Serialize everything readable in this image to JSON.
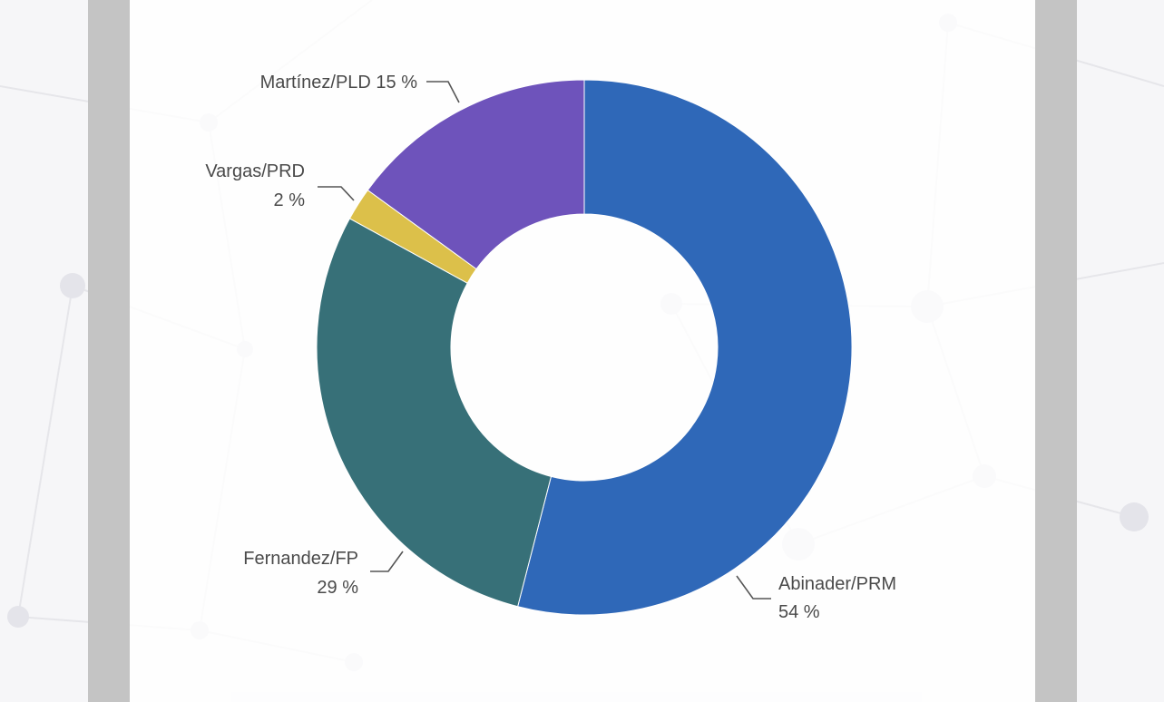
{
  "chart_data": {
    "type": "pie",
    "donut": true,
    "slices": [
      {
        "label": "Abinader/PRM",
        "value": 54,
        "value_text": "54 %",
        "color": "#2f68b8"
      },
      {
        "label": "Fernandez/FP",
        "value": 29,
        "value_text": "29 %",
        "color": "#377078"
      },
      {
        "label": "Vargas/PRD",
        "value": 2,
        "value_text": "2 %",
        "color": "#dcc04a"
      },
      {
        "label": "Martínez/PLD",
        "value": 15,
        "value_text": "15 %",
        "color": "#6e53bb"
      }
    ],
    "title": ""
  },
  "colors": {
    "background": "#f6f6f8",
    "side_bars": "#c4c4c4",
    "label_text": "#4a4a4a",
    "leader_line": "#555555"
  }
}
